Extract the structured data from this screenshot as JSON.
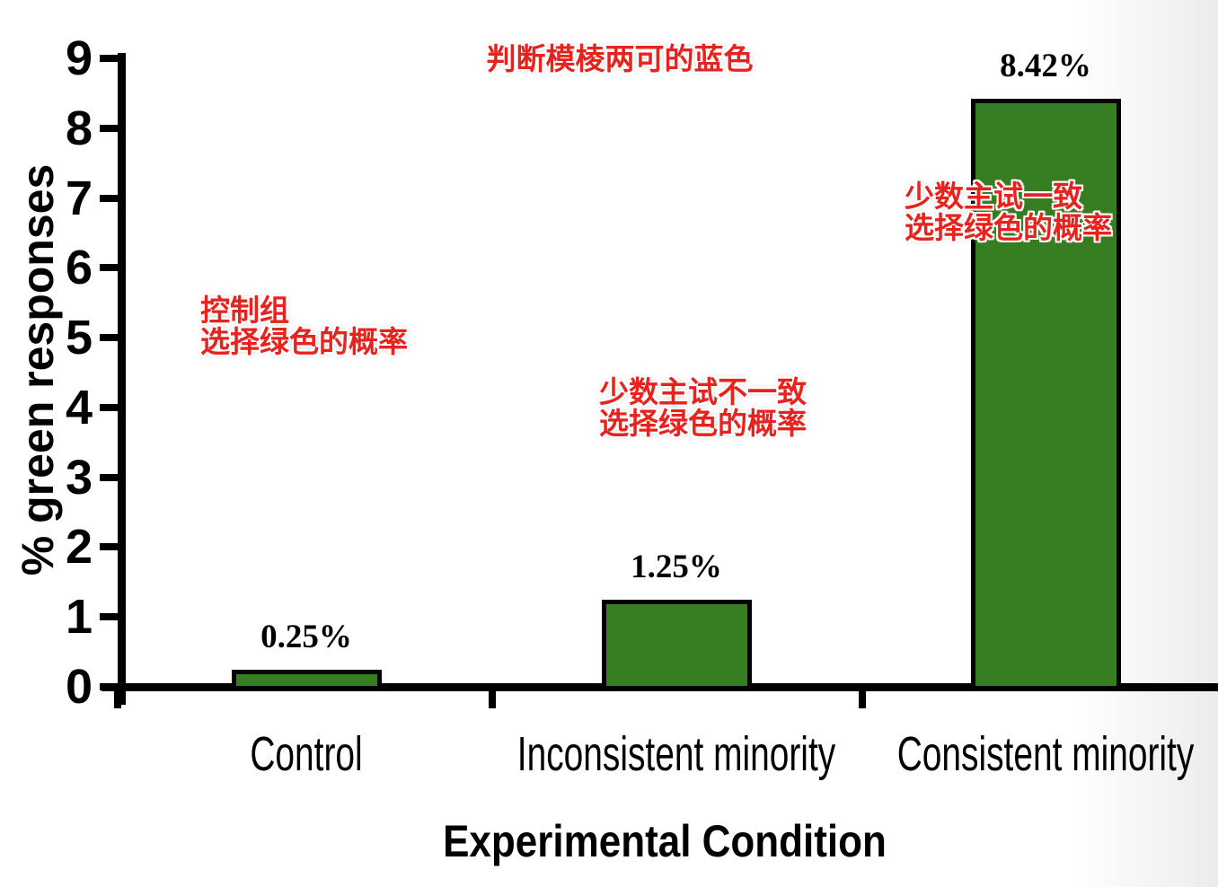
{
  "chart_data": {
    "type": "bar",
    "title": "",
    "categories": [
      "Control",
      "Inconsistent minority",
      "Consistent minority"
    ],
    "values": [
      0.25,
      1.25,
      8.42
    ],
    "value_labels": [
      "0.25%",
      "1.25%",
      "8.42%"
    ],
    "xlabel": "Experimental Condition",
    "ylabel": "% green responses",
    "ylim": [
      0,
      9
    ],
    "yticks": [
      0,
      1,
      2,
      3,
      4,
      5,
      6,
      7,
      8,
      9
    ],
    "grid": false,
    "legend": false,
    "bar_color": "#377D21",
    "bar_border_color": "#000000",
    "annotation_color": "#E8231D",
    "annotations": [
      {
        "id": "ambiguous-blue-note",
        "lines": [
          "判断模棱两可的蓝色"
        ]
      },
      {
        "id": "control-group-note",
        "lines": [
          "控制组",
          "选择绿色的概率"
        ]
      },
      {
        "id": "inconsistent-minority-note",
        "lines": [
          "少数主试不一致",
          "选择绿色的概率"
        ]
      },
      {
        "id": "consistent-minority-note",
        "lines": [
          "少数主试一致",
          "选择绿色的概率"
        ]
      }
    ]
  }
}
